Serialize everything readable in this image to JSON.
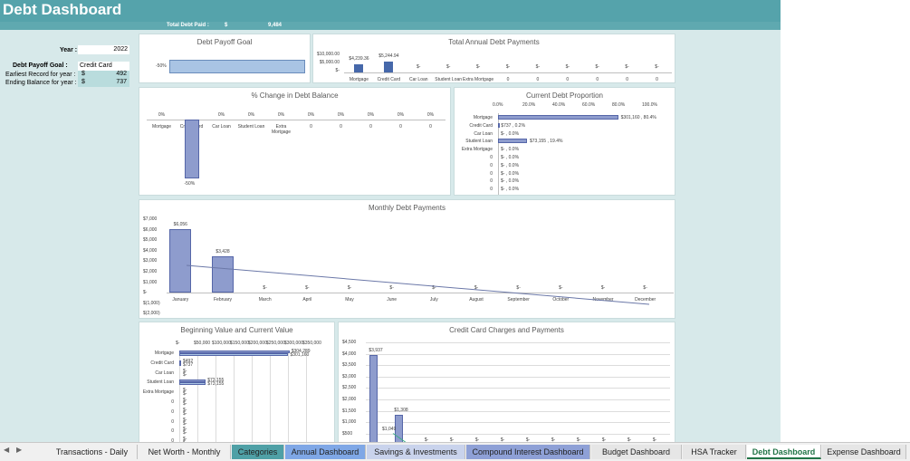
{
  "header": {
    "title": "Debt Dashboard",
    "total_label": "Total Debt Paid :",
    "total_currency": "$",
    "total_value": "9,484"
  },
  "side": {
    "year_label": "Year :",
    "year_value": "2022",
    "goal_label": "Debt Payoff Goal :",
    "goal_value": "Credit Card",
    "earliest_label": "Earliest Record for year :",
    "earliest_currency": "$",
    "earliest_value": "492",
    "ending_label": "Ending Balance for year :",
    "ending_currency": "$",
    "ending_value": "737"
  },
  "payoff_goal": {
    "title": "Debt Payoff Goal",
    "value_label": "-50%"
  },
  "annual": {
    "title": "Total Annual Debt Payments",
    "y_ticks": [
      "$10,000.00",
      "$5,000.00",
      "$-"
    ],
    "bar_labels": [
      "$4,239.36",
      "$5,244.94",
      "$-",
      "$-",
      "$-",
      "$-",
      "$-",
      "$-",
      "$-",
      "$-",
      "$-"
    ],
    "categories": [
      "Mortgage",
      "Credit Card",
      "Car Loan",
      "Student Loan",
      "Extra Mortgage",
      "0",
      "0",
      "0",
      "0",
      "0",
      "0"
    ]
  },
  "pct_change": {
    "title": "% Change in Debt Balance",
    "top_labels": [
      "0%",
      "",
      "0%",
      "0%",
      "0%",
      "0%",
      "0%",
      "0%",
      "0%",
      "0%"
    ],
    "categories": [
      "Mortgage",
      "Credit Card",
      "Car Loan",
      "Student Loan",
      "Extra Mortgage",
      "0",
      "0",
      "0",
      "0",
      "0"
    ],
    "neg_label": "-50%"
  },
  "proportion": {
    "title": "Current Debt Proportion",
    "x_ticks": [
      "0.0%",
      "20.0%",
      "40.0%",
      "60.0%",
      "80.0%",
      "100.0%"
    ],
    "categories": [
      "Mortgage",
      "Credit Card",
      "Car Loan",
      "Student Loan",
      "Extra Mortgage",
      "0",
      "0",
      "0",
      "0",
      "0",
      "0"
    ],
    "value_labels": [
      "$301,160 , 80.4%",
      "$737 , 0.2%",
      "$- , 0.0%",
      "$73,155 , 19.4%",
      "$- , 0.0%",
      "$- , 0.0%",
      "$- , 0.0%",
      "$- , 0.0%",
      "$- , 0.0%",
      "$- , 0.0%",
      "$- , 0.0%"
    ]
  },
  "monthly": {
    "title": "Monthly Debt Payments",
    "y_ticks": [
      "$7,000",
      "$6,000",
      "$5,000",
      "$4,000",
      "$3,000",
      "$2,000",
      "$1,000",
      "$-",
      "$(1,000)",
      "$(2,000)"
    ],
    "months": [
      "January",
      "February",
      "March",
      "April",
      "May",
      "June",
      "July",
      "August",
      "September",
      "October",
      "November",
      "December"
    ],
    "bar_labels": [
      "$6,056",
      "$3,428",
      "$-",
      "$-",
      "$-",
      "$-",
      "$-",
      "$-",
      "$-",
      "$-",
      "$-",
      "$-"
    ]
  },
  "begin_current": {
    "title": "Beginning Value and Current Value",
    "x_ticks": [
      "$-",
      "$50,000",
      "$100,000",
      "$150,000",
      "$200,000",
      "$250,000",
      "$300,000",
      "$350,000"
    ],
    "categories": [
      "Mortgage",
      "Credit Card",
      "Car Loan",
      "Student Loan",
      "Extra Mortgage",
      "0",
      "0",
      "0",
      "0",
      "0",
      "0"
    ],
    "value_labels_begin": [
      "$304,289",
      "$492",
      "$-",
      "$73,155",
      "$-",
      "$-",
      "$-",
      "$-",
      "$-",
      "$-",
      "$-"
    ],
    "value_labels_current": [
      "$301,160",
      "$737",
      "$-",
      "$73,155",
      "$-",
      "$-",
      "$-",
      "$-",
      "$-",
      "$-",
      "$-"
    ]
  },
  "cc_charges": {
    "title": "Credit Card Charges and Payments",
    "y_ticks": [
      "$4,500",
      "$4,000",
      "$3,500",
      "$3,000",
      "$2,500",
      "$2,000",
      "$1,500",
      "$1,000",
      "$500"
    ],
    "bar_labels_top": [
      "$3,937",
      "$1,308",
      "$-",
      "$-",
      "$-",
      "$-",
      "$-",
      "$-",
      "$-",
      "$-",
      "$-",
      "$-"
    ],
    "secondary_label": "$1,049"
  },
  "chart_data": [
    {
      "type": "bar",
      "title": "Total Annual Debt Payments",
      "categories": [
        "Mortgage",
        "Credit Card",
        "Car Loan",
        "Student Loan",
        "Extra Mortgage",
        "0",
        "0",
        "0",
        "0",
        "0",
        "0"
      ],
      "values": [
        4239.36,
        5244.94,
        0,
        0,
        0,
        0,
        0,
        0,
        0,
        0,
        0
      ],
      "ylim": [
        0,
        10000
      ]
    },
    {
      "type": "bar",
      "title": "Monthly Debt Payments",
      "categories": [
        "January",
        "February",
        "March",
        "April",
        "May",
        "June",
        "July",
        "August",
        "September",
        "October",
        "November",
        "December"
      ],
      "values": [
        6056,
        3428,
        0,
        0,
        0,
        0,
        0,
        0,
        0,
        0,
        0,
        0
      ],
      "ylim": [
        -2000,
        7000
      ]
    },
    {
      "type": "bar",
      "title": "Current Debt Proportion",
      "categories": [
        "Mortgage",
        "Credit Card",
        "Car Loan",
        "Student Loan",
        "Extra Mortgage"
      ],
      "values": [
        80.4,
        0.2,
        0,
        19.4,
        0
      ]
    },
    {
      "type": "bar",
      "title": "Credit Card Charges and Payments",
      "values": [
        3937,
        1308,
        0,
        0,
        0,
        0,
        0,
        0,
        0,
        0,
        0,
        0
      ],
      "ylim": [
        0,
        4500
      ]
    }
  ],
  "tabs": [
    {
      "label": "Transactions - Daily",
      "color": "#f0f0f0"
    },
    {
      "label": "Net Worth - Monthly",
      "color": "#f0f0f0"
    },
    {
      "label": "Categories",
      "color": "#4fa0a6"
    },
    {
      "label": "Annual Dashboard",
      "color": "#7fa7e6"
    },
    {
      "label": "Savings & Investments",
      "color": "#c9d3ec"
    },
    {
      "label": "Compound Interest Dashboard",
      "color": "#8ea0d6"
    },
    {
      "label": "Budget Dashboard",
      "color": "#e6e6e6"
    },
    {
      "label": "HSA Tracker",
      "color": "#e6e6e6"
    },
    {
      "label": "Debt Dashboard",
      "color": "#ffffff"
    },
    {
      "label": "Expense Dashboard",
      "color": "#e6e6e6"
    }
  ]
}
